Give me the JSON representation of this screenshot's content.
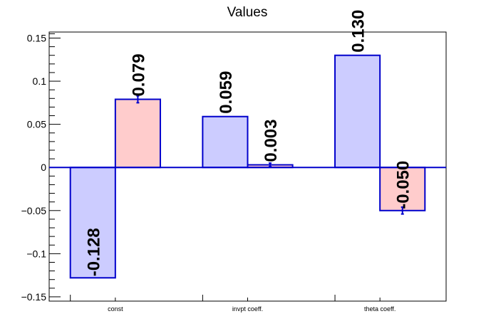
{
  "chart_data": {
    "type": "bar",
    "title": "Values",
    "categories": [
      "const",
      "invpt coeff.",
      "theta coeff."
    ],
    "series": [
      {
        "values": [
          -0.128,
          0.059,
          0.13
        ],
        "errors": [
          0,
          0,
          0
        ],
        "fill": "#ccccff"
      },
      {
        "values": [
          0.079,
          0.003,
          -0.05
        ],
        "errors": [
          0.004,
          0.002,
          0.004
        ],
        "fill": "#ffcccc"
      }
    ],
    "data_labels": [
      [
        "-0.128",
        "0.059",
        "0.130"
      ],
      [
        "0.079",
        "0.003",
        "-0.050"
      ]
    ],
    "ylim": [
      -0.155,
      0.157
    ],
    "yticks": [
      -0.15,
      -0.1,
      -0.05,
      0,
      0.05,
      0.1,
      0.15
    ],
    "ytick_labels": [
      "−0.15",
      "−0.1",
      "−0.05",
      "0",
      "0.05",
      "0.1",
      "0.15"
    ],
    "bar_edge_color": "#0000cc",
    "grid": false,
    "xlabel": "",
    "ylabel": ""
  }
}
